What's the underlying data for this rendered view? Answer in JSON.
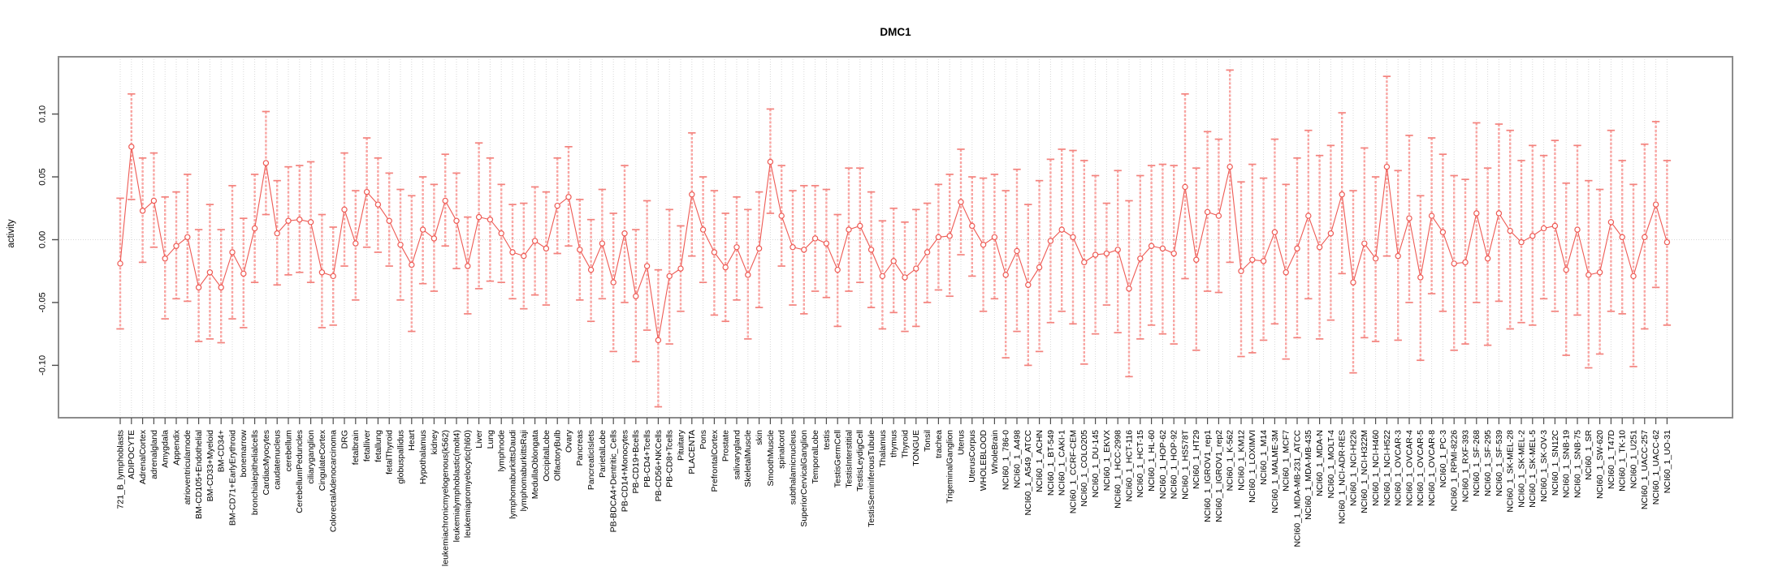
{
  "page": {
    "title": "DMC1"
  },
  "chart_data": {
    "type": "line",
    "subtype": "error-bar-profile-plot",
    "title": "DMC1",
    "xlabel": "",
    "ylabel": "activity",
    "ylim": [
      -0.145,
      0.145
    ],
    "yticks": [
      0.1,
      0.05,
      0.0,
      -0.05,
      -0.1
    ],
    "ytick_labels": [
      "0.10",
      "0.05",
      "0.00",
      "-0.05",
      "-0.10"
    ],
    "grid": "vertical dotted line at every category; dotted horizontal line at y=0",
    "legend": "none",
    "marker": "open-circle",
    "colors": {
      "series_line": "#ee5a54",
      "marker_stroke": "#ee5a54",
      "error_bar": "#f9a4a1",
      "error_cap": "#f3827d",
      "gridline": "#d9d9d9",
      "frame": "#8c8c8c",
      "tick": "#4d4d4d",
      "text": "#000000",
      "background": "#ffffff"
    },
    "categories": [
      "721_B_lymphoblasts",
      "ADIPOCYTE",
      "AdrenalCortex",
      "adrenalgland",
      "Amygdala",
      "Appendix",
      "atrioventricularnode",
      "BM-CD105+Endothelial",
      "BM-CD33+Myeloid",
      "BM-CD34+",
      "BM-CD71+EarlyErythroid",
      "bonemarrow",
      "bronchialepithelialcells",
      "CardiacMyocytes",
      "caudatenucleus",
      "cerebellum",
      "CerebellumPeduncles",
      "ciliaryganglion",
      "CingulateCortex",
      "ColorectalAdenocarcinoma",
      "DRG",
      "fetalbrain",
      "fetalliver",
      "fetallung",
      "fetalThyroid",
      "globuspallidus",
      "Heart",
      "Hypothalamus",
      "kidney",
      "leukemiachronicmyelogenous(k562)",
      "leukemialymphoblastic(molt4)",
      "leukemiapromyelocytic(hl60)",
      "Liver",
      "Lung",
      "lymphnode",
      "lymphomaburkittsDaudi",
      "lymphomaburkittsRaji",
      "MedullaOblongata",
      "OccipitalLobe",
      "OlfactoryBulb",
      "Ovary",
      "Pancreas",
      "PancreaticIslets",
      "ParietalLobe",
      "PB-BDCA4+Dentritic_Cells",
      "PB-CD14+Monocytes",
      "PB-CD19+Bcells",
      "PB-CD4+Tcells",
      "PB-CD56+NKCells",
      "PB-CD8+Tcells",
      "Pituitary",
      "PLACENTA",
      "Pons",
      "PrefrontalCortex",
      "Prostate",
      "salivarygland",
      "SkeletalMuscle",
      "skin",
      "SmoothMuscle",
      "spinalcord",
      "subthalamicnucleus",
      "SuperiorCervicalGanglion",
      "TemporalLobe",
      "testis",
      "TestisGermCell",
      "TestisInterstitial",
      "TestisLeydigCell",
      "TestisSeminiferousTubule",
      "Thalamus",
      "thymus",
      "Thyroid",
      "TONGUE",
      "Tonsil",
      "trachea",
      "TrigeminalGanglion",
      "Uterus",
      "UterusCorpus",
      "WHOLEBLOOD",
      "WholeBrain",
      "NCI60_1_786-0",
      "NCI60_1_A498",
      "NCI60_1_A549_ATCC",
      "NCI60_1_ACHN",
      "NCI60_1_BT-549",
      "NCI60_1_CAKI-1",
      "NCI60_1_CCRF-CEM",
      "NCI60_1_COLO205",
      "NCI60_1_DU-145",
      "NCI60_1_EKVX",
      "NCI60_1_HCC-2998",
      "NCI60_1_HCT-116",
      "NCI60_1_HCT-15",
      "NCI60_1_HL-60",
      "NCI60_1_HOP-62",
      "NCI60_1_HOP-92",
      "NCI60_1_HS578T",
      "NCI60_1_HT29",
      "NCI60_1_IGROV1_rep1",
      "NCI60_1_IGROV1_rep2",
      "NCI60_1_K-562",
      "NCI60_1_KM12",
      "NCI60_1_LOXIMVI",
      "NCI60_1_M14",
      "NCI60_1_MALME-3M",
      "NCI60_1_MCF7",
      "NCI60_1_MDA-MB-231_ATCC",
      "NCI60_1_MDA-MB-435",
      "NCI60_1_MDA-N",
      "NCI60_1_MOLT-4",
      "NCI60_1_NCI-ADR-RES",
      "NCI60_1_NCI-H226",
      "NCI60_1_NCI-H322M",
      "NCI60_1_NCI-H460",
      "NCI60_1_NCI-H522",
      "NCI60_1_OVCAR-3",
      "NCI60_1_OVCAR-4",
      "NCI60_1_OVCAR-5",
      "NCI60_1_OVCAR-8",
      "NCI60_1_PC-3",
      "NCI60_1_RPMI-8226",
      "NCI60_1_RXF-393",
      "NCI60_1_SF-268",
      "NCI60_1_SF-295",
      "NCI60_1_SF-539",
      "NCI60_1_SK-MEL-28",
      "NCI60_1_SK-MEL-2",
      "NCI60_1_SK-MEL-5",
      "NCI60_1_SK-OV-3",
      "NCI60_1_SN12C",
      "NCI60_1_SNB-19",
      "NCI60_1_SNB-75",
      "NCI60_1_SR",
      "NCI60_1_SW-620",
      "NCI60_1_T47D",
      "NCI60_1_TK-10",
      "NCI60_1_U251",
      "NCI60_1_UACC-257",
      "NCI60_1_UACC-62",
      "NCI60_1_UO-31"
    ],
    "series": [
      {
        "name": "activity",
        "values": [
          -0.019,
          0.074,
          0.023,
          0.031,
          -0.015,
          -0.005,
          0.002,
          -0.038,
          -0.026,
          -0.038,
          -0.01,
          -0.027,
          0.009,
          0.061,
          0.005,
          0.015,
          0.016,
          0.014,
          -0.026,
          -0.029,
          0.024,
          -0.003,
          0.038,
          0.028,
          0.015,
          -0.004,
          -0.02,
          0.008,
          0.001,
          0.031,
          0.015,
          -0.021,
          0.018,
          0.016,
          0.005,
          -0.01,
          -0.013,
          -0.001,
          -0.007,
          0.027,
          0.034,
          -0.008,
          -0.024,
          -0.003,
          -0.034,
          0.005,
          -0.045,
          -0.021,
          -0.08,
          -0.029,
          -0.023,
          0.036,
          0.008,
          -0.01,
          -0.022,
          -0.006,
          -0.028,
          -0.007,
          0.062,
          0.019,
          -0.006,
          -0.008,
          0.001,
          -0.003,
          -0.024,
          0.008,
          0.011,
          -0.008,
          -0.029,
          -0.017,
          -0.03,
          -0.023,
          -0.01,
          0.002,
          0.003,
          0.03,
          0.011,
          -0.004,
          0.002,
          -0.028,
          -0.009,
          -0.036,
          -0.022,
          -0.001,
          0.008,
          0.002,
          -0.018,
          -0.012,
          -0.011,
          -0.008,
          -0.039,
          -0.015,
          -0.005,
          -0.007,
          -0.011,
          0.042,
          -0.016,
          0.022,
          0.019,
          0.058,
          -0.025,
          -0.016,
          -0.017,
          0.006,
          -0.026,
          -0.007,
          0.019,
          -0.006,
          0.005,
          0.036,
          -0.034,
          -0.003,
          -0.015,
          0.058,
          -0.013,
          0.017,
          -0.03,
          0.019,
          0.006,
          -0.019,
          -0.018,
          0.021,
          -0.015,
          0.021,
          0.007,
          -0.002,
          0.003,
          0.009,
          0.011,
          -0.024,
          0.008,
          -0.028,
          -0.026,
          0.014,
          0.002,
          -0.029,
          0.002,
          0.028,
          -0.002
        ],
        "err_lo": [
          -0.071,
          0.032,
          -0.018,
          -0.006,
          -0.063,
          -0.047,
          -0.049,
          -0.081,
          -0.079,
          -0.082,
          -0.063,
          -0.07,
          -0.034,
          0.02,
          -0.036,
          -0.028,
          -0.026,
          -0.034,
          -0.07,
          -0.068,
          -0.021,
          -0.048,
          -0.006,
          -0.01,
          -0.021,
          -0.048,
          -0.073,
          -0.035,
          -0.041,
          -0.005,
          -0.023,
          -0.059,
          -0.039,
          -0.033,
          -0.034,
          -0.047,
          -0.055,
          -0.044,
          -0.052,
          -0.011,
          -0.005,
          -0.048,
          -0.065,
          -0.047,
          -0.089,
          -0.05,
          -0.097,
          -0.072,
          -0.133,
          -0.083,
          -0.057,
          -0.013,
          -0.034,
          -0.06,
          -0.065,
          -0.048,
          -0.079,
          -0.054,
          0.021,
          -0.021,
          -0.052,
          -0.059,
          -0.041,
          -0.046,
          -0.069,
          -0.041,
          -0.034,
          -0.054,
          -0.071,
          -0.058,
          -0.073,
          -0.069,
          -0.05,
          -0.04,
          -0.045,
          -0.012,
          -0.029,
          -0.057,
          -0.047,
          -0.094,
          -0.073,
          -0.1,
          -0.089,
          -0.066,
          -0.057,
          -0.067,
          -0.099,
          -0.075,
          -0.052,
          -0.074,
          -0.109,
          -0.079,
          -0.068,
          -0.075,
          -0.083,
          -0.031,
          -0.088,
          -0.041,
          -0.042,
          -0.018,
          -0.093,
          -0.09,
          -0.08,
          -0.067,
          -0.095,
          -0.078,
          -0.047,
          -0.079,
          -0.064,
          -0.027,
          -0.106,
          -0.078,
          -0.081,
          -0.013,
          -0.08,
          -0.05,
          -0.096,
          -0.043,
          -0.057,
          -0.088,
          -0.083,
          -0.05,
          -0.084,
          -0.049,
          -0.071,
          -0.066,
          -0.068,
          -0.047,
          -0.057,
          -0.092,
          -0.06,
          -0.102,
          -0.091,
          -0.057,
          -0.059,
          -0.101,
          -0.071,
          -0.038,
          -0.068
        ],
        "err_hi": [
          0.033,
          0.116,
          0.065,
          0.069,
          0.034,
          0.038,
          0.052,
          0.008,
          0.028,
          0.008,
          0.043,
          0.017,
          0.052,
          0.102,
          0.047,
          0.058,
          0.059,
          0.062,
          0.02,
          0.01,
          0.069,
          0.039,
          0.081,
          0.065,
          0.053,
          0.04,
          0.035,
          0.05,
          0.044,
          0.068,
          0.053,
          0.018,
          0.077,
          0.065,
          0.044,
          0.028,
          0.029,
          0.042,
          0.038,
          0.065,
          0.074,
          0.032,
          0.016,
          0.04,
          0.021,
          0.059,
          0.008,
          0.031,
          -0.024,
          0.024,
          0.011,
          0.085,
          0.05,
          0.039,
          0.021,
          0.034,
          0.024,
          0.038,
          0.104,
          0.059,
          0.039,
          0.043,
          0.043,
          0.04,
          0.02,
          0.057,
          0.057,
          0.038,
          0.015,
          0.025,
          0.014,
          0.024,
          0.029,
          0.044,
          0.052,
          0.072,
          0.05,
          0.049,
          0.052,
          0.039,
          0.056,
          0.028,
          0.047,
          0.064,
          0.072,
          0.071,
          0.063,
          0.051,
          0.029,
          0.055,
          0.031,
          0.051,
          0.059,
          0.06,
          0.059,
          0.116,
          0.057,
          0.086,
          0.08,
          0.135,
          0.046,
          0.06,
          0.049,
          0.08,
          0.044,
          0.065,
          0.087,
          0.067,
          0.075,
          0.101,
          0.039,
          0.073,
          0.05,
          0.13,
          0.055,
          0.083,
          0.035,
          0.081,
          0.068,
          0.051,
          0.048,
          0.093,
          0.057,
          0.092,
          0.087,
          0.063,
          0.075,
          0.067,
          0.079,
          0.045,
          0.075,
          0.047,
          0.04,
          0.087,
          0.063,
          0.044,
          0.076,
          0.094,
          0.063
        ]
      }
    ]
  }
}
